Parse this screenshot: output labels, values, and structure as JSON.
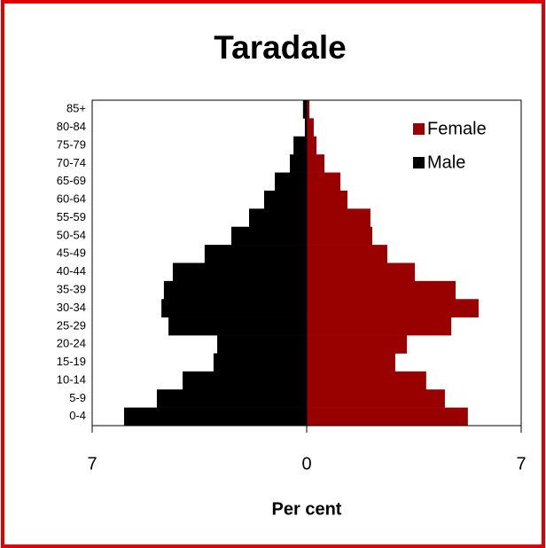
{
  "chart_data": {
    "type": "pyramid",
    "title": "Taradale",
    "xlabel": "Per cent",
    "categories": [
      "0-4",
      "5-9",
      "10-14",
      "15-19",
      "20-24",
      "25-29",
      "30-34",
      "35-39",
      "40-44",
      "45-49",
      "50-54",
      "55-59",
      "60-64",
      "65-69",
      "70-74",
      "75-79",
      "80-84",
      "85+"
    ],
    "series": [
      {
        "name": "Female",
        "color": "#990000",
        "values": [
          5.26,
          4.51,
          3.9,
          2.89,
          3.27,
          4.72,
          5.61,
          4.86,
          3.53,
          2.63,
          2.14,
          2.08,
          1.33,
          1.1,
          0.58,
          0.32,
          0.23,
          0.09
        ]
      },
      {
        "name": "Male",
        "color": "#000000",
        "values": [
          -5.96,
          -4.89,
          -4.05,
          -3.04,
          -2.92,
          -4.51,
          -4.74,
          -4.66,
          -4.37,
          -3.33,
          -2.46,
          -1.88,
          -1.39,
          -1.04,
          -0.55,
          -0.43,
          -0.06,
          -0.12
        ]
      }
    ],
    "xlim": [
      -7,
      7
    ],
    "xticks": [
      {
        "value": -7,
        "label": "7"
      },
      0,
      7
    ],
    "legend": "upper right"
  }
}
